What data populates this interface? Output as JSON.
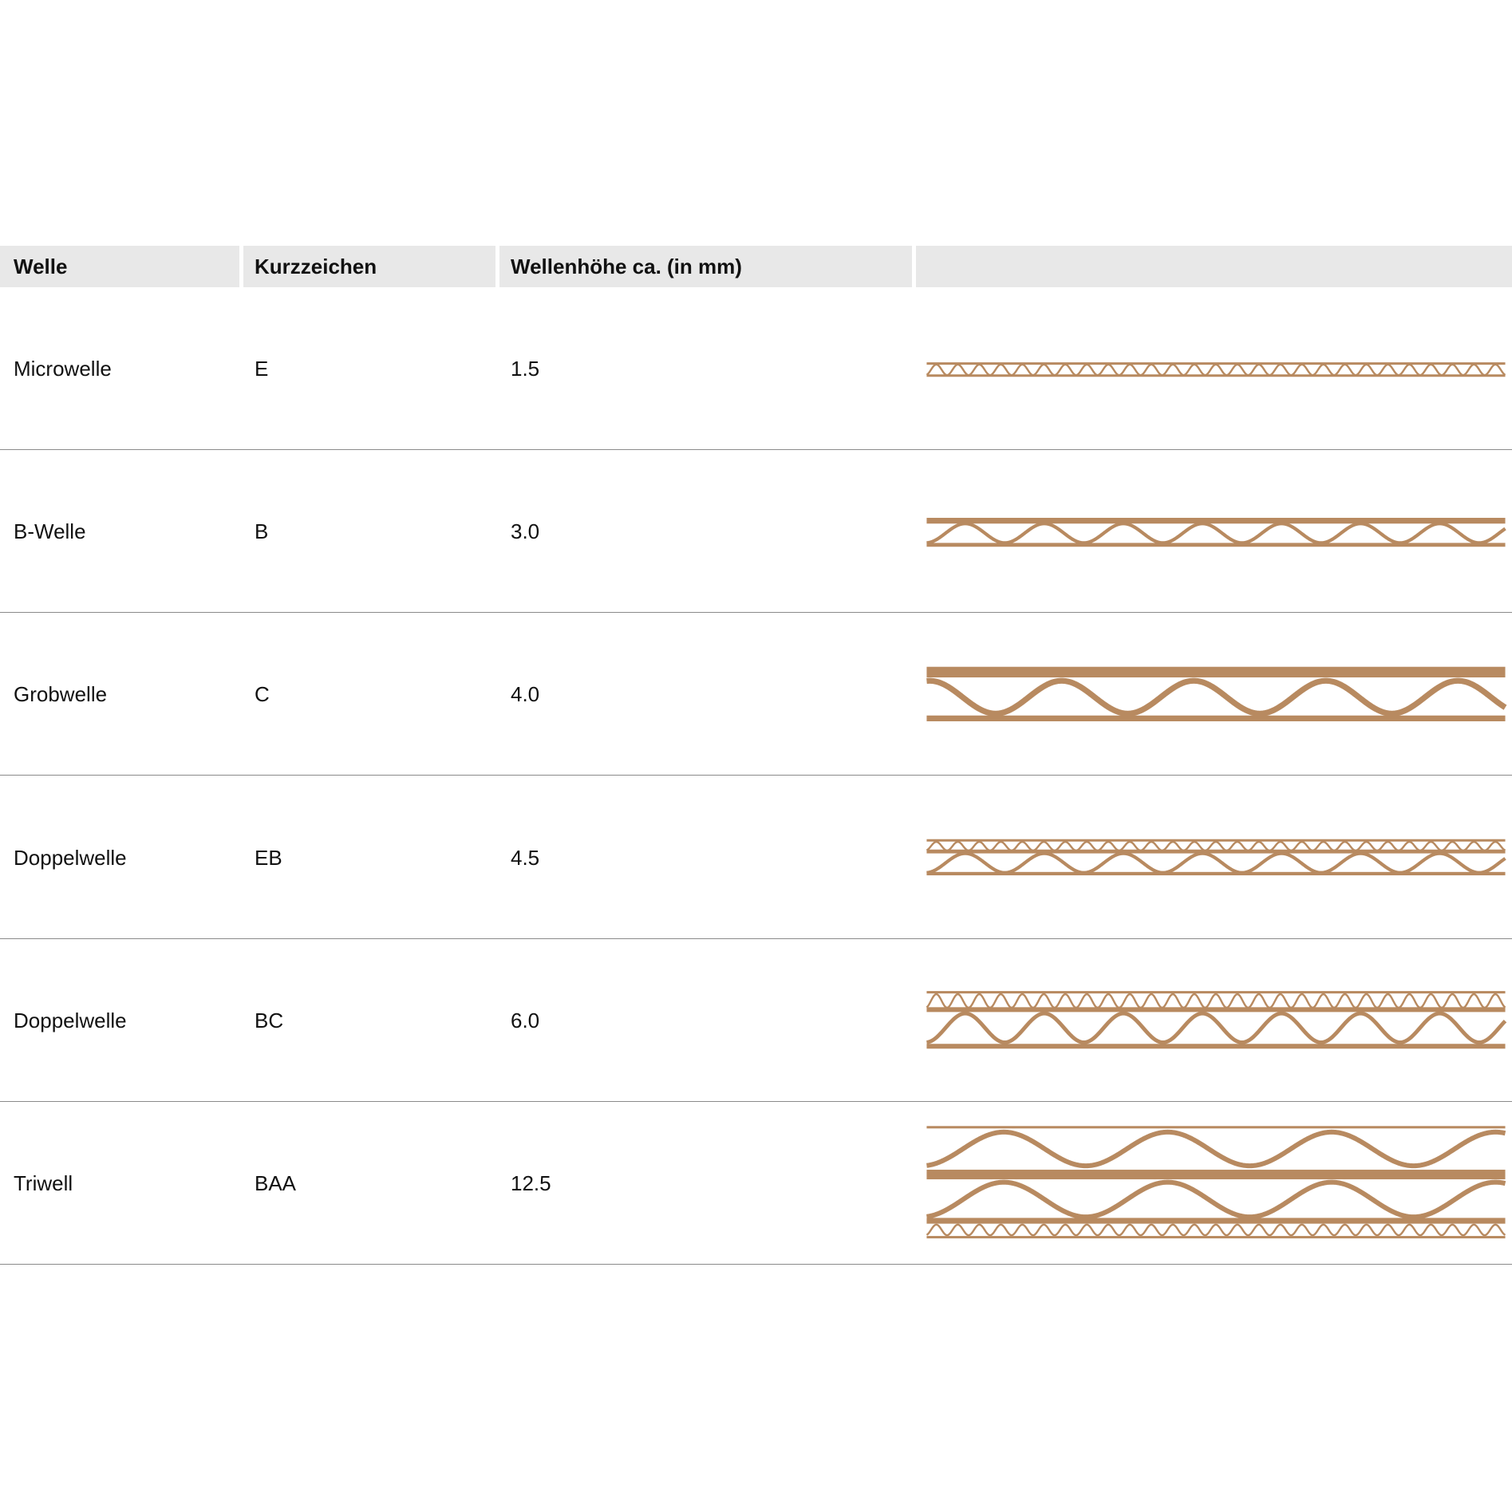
{
  "table": {
    "headers": [
      "Welle",
      "Kurzzeichen",
      "Wellenhöhe ca. (in mm)",
      ""
    ],
    "rows": [
      {
        "welle": "Microwelle",
        "kurz": "E",
        "hoehe": "1.5",
        "illustration": "e-flute-icon"
      },
      {
        "welle": "B-Welle",
        "kurz": "B",
        "hoehe": "3.0",
        "illustration": "b-flute-icon"
      },
      {
        "welle": "Grobwelle",
        "kurz": "C",
        "hoehe": "4.0",
        "illustration": "c-flute-icon"
      },
      {
        "welle": "Doppelwelle",
        "kurz": "EB",
        "hoehe": "4.5",
        "illustration": "eb-flute-icon"
      },
      {
        "welle": "Doppelwelle",
        "kurz": "BC",
        "hoehe": "6.0",
        "illustration": "bc-flute-icon"
      },
      {
        "welle": "Triwell",
        "kurz": "BAA",
        "hoehe": "12.5",
        "illustration": "baa-flute-icon"
      }
    ]
  },
  "colors": {
    "cardboard": "#b88a60",
    "header_bg": "#e8e8e8",
    "divider": "#8a8a8a"
  }
}
